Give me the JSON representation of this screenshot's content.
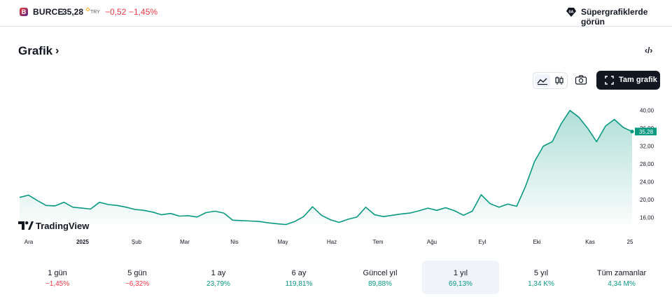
{
  "header": {
    "logo_letter": "B",
    "ticker": "BURCE",
    "price": "35,28",
    "currency": "TRY",
    "change": "−0,52",
    "change_percent": "−1,45%",
    "super_charts_label": "Süpergrafiklerde görün",
    "super_charts_badge": "0A"
  },
  "section": {
    "title": "Grafik",
    "chevron": "›",
    "embed_icon": "‹/›"
  },
  "toolbar": {
    "line_icon": "line-chart-icon",
    "candle_icon": "candlestick-icon",
    "camera_icon": "camera-icon",
    "full_chart_label": "Tam grafik"
  },
  "branding": {
    "tradingview": "TradingView"
  },
  "colors": {
    "accent": "#089981",
    "negative": "#f23645",
    "text": "#131722"
  },
  "chart_data": {
    "type": "area",
    "x_ticks": [
      "Ara",
      "2025",
      "Şub",
      "Mar",
      "Nis",
      "May",
      "Haz",
      "Tem",
      "Ağu",
      "Eyl",
      "Eki",
      "Kas",
      "25"
    ],
    "y_ticks": [
      "16,00",
      "20,00",
      "24,00",
      "28,00",
      "32,00",
      "36,00",
      "40,00"
    ],
    "ylim": [
      14.5,
      42
    ],
    "last_value_label": "35,28",
    "values": [
      20.5,
      21.0,
      19.8,
      18.7,
      18.6,
      19.4,
      18.3,
      18.1,
      17.9,
      19.4,
      18.9,
      18.7,
      18.3,
      17.8,
      17.6,
      17.2,
      16.6,
      16.9,
      16.3,
      16.4,
      16.1,
      17.1,
      17.4,
      17.0,
      15.4,
      15.3,
      15.2,
      15.1,
      14.8,
      14.6,
      14.4,
      15.1,
      16.2,
      18.4,
      16.5,
      15.5,
      14.9,
      15.6,
      16.1,
      18.3,
      16.6,
      16.2,
      16.5,
      16.8,
      17.0,
      17.5,
      18.1,
      17.6,
      18.2,
      17.5,
      16.5,
      17.4,
      21.1,
      19.1,
      18.3,
      19.0,
      18.5,
      23.0,
      28.5,
      32.0,
      33.0,
      37.0,
      40.0,
      38.5,
      36.0,
      33.0,
      36.5,
      38.0,
      36.2,
      35.28
    ]
  },
  "periods": [
    {
      "label": "1 gün",
      "value": "−1,45%",
      "trend": "neg"
    },
    {
      "label": "5 gün",
      "value": "−6,32%",
      "trend": "neg"
    },
    {
      "label": "1 ay",
      "value": "23,79%",
      "trend": "pos"
    },
    {
      "label": "6 ay",
      "value": "119,81%",
      "trend": "pos"
    },
    {
      "label": "Güncel yıl",
      "value": "89,88%",
      "trend": "pos"
    },
    {
      "label": "1 yıl",
      "value": "69,13%",
      "trend": "pos"
    },
    {
      "label": "5 yıl",
      "value": "1,34 K%",
      "trend": "pos"
    },
    {
      "label": "Tüm zamanlar",
      "value": "4,34 M%",
      "trend": "pos"
    }
  ]
}
